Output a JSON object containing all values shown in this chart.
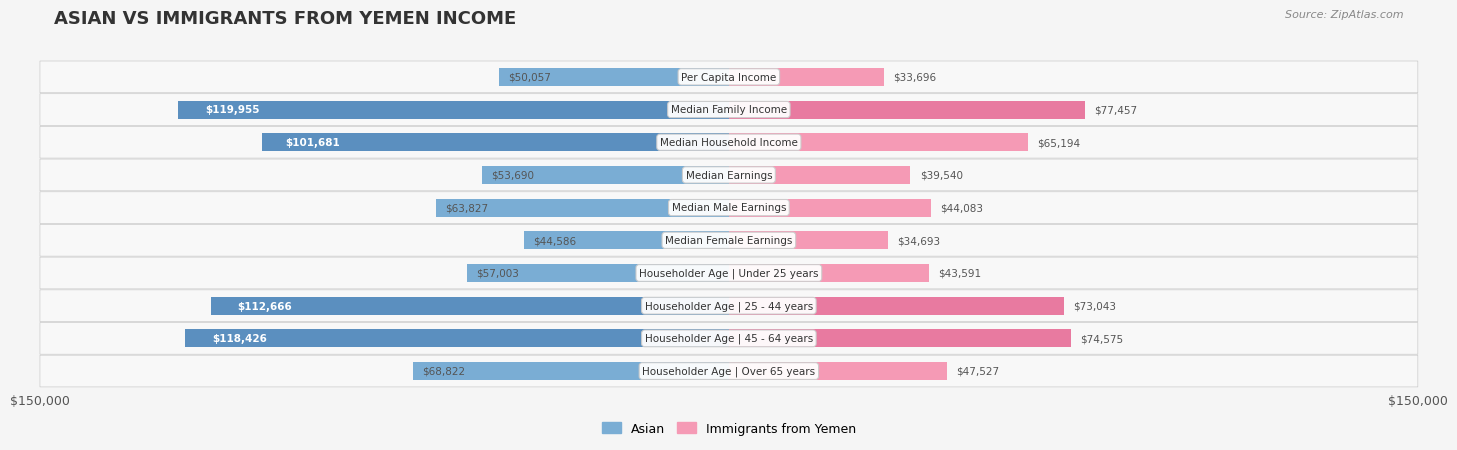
{
  "title": "ASIAN VS IMMIGRANTS FROM YEMEN INCOME",
  "source": "Source: ZipAtlas.com",
  "categories": [
    "Per Capita Income",
    "Median Family Income",
    "Median Household Income",
    "Median Earnings",
    "Median Male Earnings",
    "Median Female Earnings",
    "Householder Age | Under 25 years",
    "Householder Age | 25 - 44 years",
    "Householder Age | 45 - 64 years",
    "Householder Age | Over 65 years"
  ],
  "asian_values": [
    50057,
    119955,
    101681,
    53690,
    63827,
    44586,
    57003,
    112666,
    118426,
    68822
  ],
  "yemen_values": [
    33696,
    77457,
    65194,
    39540,
    44083,
    34693,
    43591,
    73043,
    74575,
    47527
  ],
  "asian_labels": [
    "$50,057",
    "$119,955",
    "$101,681",
    "$53,690",
    "$63,827",
    "$44,586",
    "$57,003",
    "$112,666",
    "$118,426",
    "$68,822"
  ],
  "yemen_labels": [
    "$33,696",
    "$77,457",
    "$65,194",
    "$39,540",
    "$44,083",
    "$34,693",
    "$43,591",
    "$73,043",
    "$74,575",
    "$47,527"
  ],
  "asian_color": "#7aadd4",
  "asian_color_dark": "#5b8fbf",
  "yemen_color": "#f59ab5",
  "yemen_color_dark": "#e87aa0",
  "axis_limit": 150000,
  "axis_label_left": "$150,000",
  "axis_label_right": "$150,000",
  "legend_asian": "Asian",
  "legend_yemen": "Immigrants from Yemen",
  "bg_color": "#f5f5f5",
  "row_bg_color": "#ffffff",
  "row_alt_color": "#f0f0f0"
}
